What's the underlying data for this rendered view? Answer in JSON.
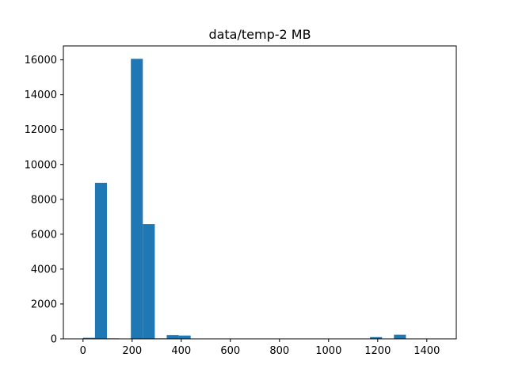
{
  "chart_data": {
    "type": "bar",
    "title": "data/temp-2 MB",
    "xlabel": "",
    "ylabel": "",
    "xlim": [
      -80,
      1520
    ],
    "ylim": [
      0,
      16800
    ],
    "bar_color": "#1f77b4",
    "bin_width": 48.7,
    "bins": [
      {
        "x0": 0,
        "value": 60
      },
      {
        "x0": 48.7,
        "value": 8950
      },
      {
        "x0": 97.4,
        "value": 30
      },
      {
        "x0": 146.1,
        "value": 0
      },
      {
        "x0": 194.8,
        "value": 16060
      },
      {
        "x0": 243.5,
        "value": 6580
      },
      {
        "x0": 292.2,
        "value": 30
      },
      {
        "x0": 340.9,
        "value": 220
      },
      {
        "x0": 389.6,
        "value": 190
      },
      {
        "x0": 438.3,
        "value": 0
      },
      {
        "x0": 487.0,
        "value": 0
      },
      {
        "x0": 535.7,
        "value": 0
      },
      {
        "x0": 584.4,
        "value": 0
      },
      {
        "x0": 633.1,
        "value": 0
      },
      {
        "x0": 681.8,
        "value": 0
      },
      {
        "x0": 730.5,
        "value": 0
      },
      {
        "x0": 779.2,
        "value": 0
      },
      {
        "x0": 827.9,
        "value": 0
      },
      {
        "x0": 876.6,
        "value": 0
      },
      {
        "x0": 925.3,
        "value": 0
      },
      {
        "x0": 974.0,
        "value": 0
      },
      {
        "x0": 1022.7,
        "value": 0
      },
      {
        "x0": 1071.4,
        "value": 0
      },
      {
        "x0": 1120.1,
        "value": 0
      },
      {
        "x0": 1168.8,
        "value": 100
      },
      {
        "x0": 1217.5,
        "value": 0
      },
      {
        "x0": 1266.2,
        "value": 240
      },
      {
        "x0": 1314.9,
        "value": 0
      },
      {
        "x0": 1363.6,
        "value": 0
      },
      {
        "x0": 1412.3,
        "value": 10
      }
    ],
    "x_ticks": [
      0,
      200,
      400,
      600,
      800,
      1000,
      1200,
      1400
    ],
    "y_ticks": [
      0,
      2000,
      4000,
      6000,
      8000,
      10000,
      12000,
      14000,
      16000
    ]
  }
}
